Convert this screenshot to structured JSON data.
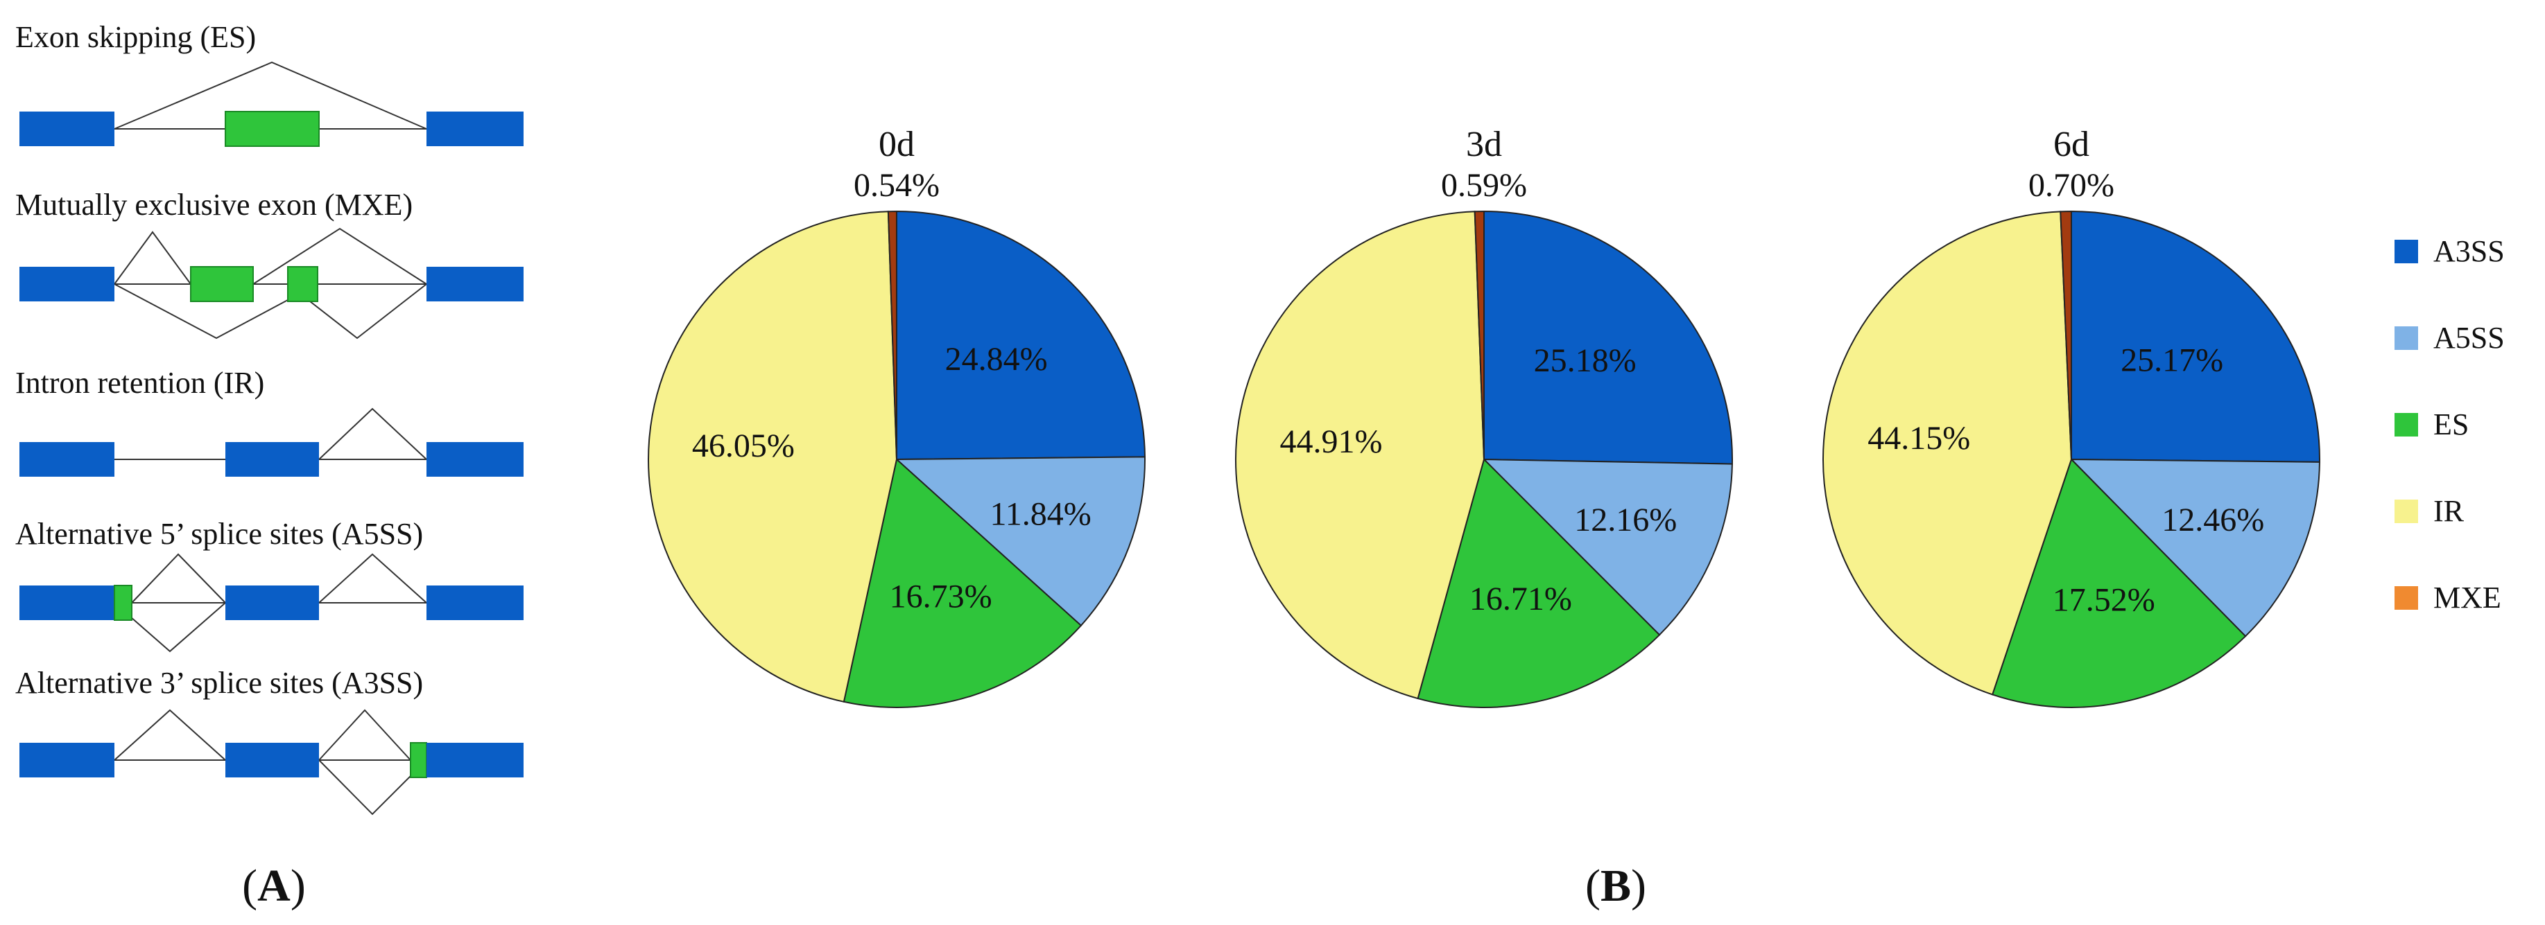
{
  "panel_a": {
    "diagrams": [
      {
        "title": "Exon skipping (ES)"
      },
      {
        "title": "Mutually exclusive exon (MXE)"
      },
      {
        "title": "Intron retention (IR)"
      },
      {
        "title": "Alternative 5’ splice sites (A5SS)"
      },
      {
        "title": "Alternative 3’ splice sites (A3SS)"
      }
    ],
    "label_open": "(",
    "label_letter": "A",
    "label_close": ")"
  },
  "panel_b": {
    "label_open": "(",
    "label_letter": "B",
    "label_close": ")"
  },
  "colors": {
    "exon_blue": "#0a5ec6",
    "exon_green": "#2fc53b",
    "A3SS": "#0a5ec6",
    "A5SS": "#7fb2e6",
    "ES": "#2fc53b",
    "IR": "#f7f28e",
    "MXE": "#f08a30",
    "MXE_slice": "#a33b10"
  },
  "chart_data": {
    "type": "pie",
    "legend_position": "right",
    "legend": [
      "A3SS",
      "A5SS",
      "ES",
      "IR",
      "MXE"
    ],
    "charts": [
      {
        "title": "0d",
        "slices": [
          {
            "name": "A3SS",
            "value": 24.84,
            "label": "24.84%"
          },
          {
            "name": "A5SS",
            "value": 11.84,
            "label": "11.84%"
          },
          {
            "name": "ES",
            "value": 16.73,
            "label": "16.73%"
          },
          {
            "name": "IR",
            "value": 46.05,
            "label": "46.05%"
          },
          {
            "name": "MXE",
            "value": 0.54,
            "label": "0.54%"
          }
        ]
      },
      {
        "title": "3d",
        "slices": [
          {
            "name": "A3SS",
            "value": 25.18,
            "label": "25.18%"
          },
          {
            "name": "A5SS",
            "value": 12.16,
            "label": "12.16%"
          },
          {
            "name": "ES",
            "value": 16.71,
            "label": "16.71%"
          },
          {
            "name": "IR",
            "value": 44.91,
            "label": "44.91%"
          },
          {
            "name": "MXE",
            "value": 0.59,
            "label": "0.59%"
          }
        ]
      },
      {
        "title": "6d",
        "slices": [
          {
            "name": "A3SS",
            "value": 25.17,
            "label": "25.17%"
          },
          {
            "name": "A5SS",
            "value": 12.46,
            "label": "12.46%"
          },
          {
            "name": "ES",
            "value": 17.52,
            "label": "17.52%"
          },
          {
            "name": "IR",
            "value": 44.15,
            "label": "44.15%"
          },
          {
            "name": "MXE",
            "value": 0.7,
            "label": "0.70%"
          }
        ]
      }
    ]
  }
}
